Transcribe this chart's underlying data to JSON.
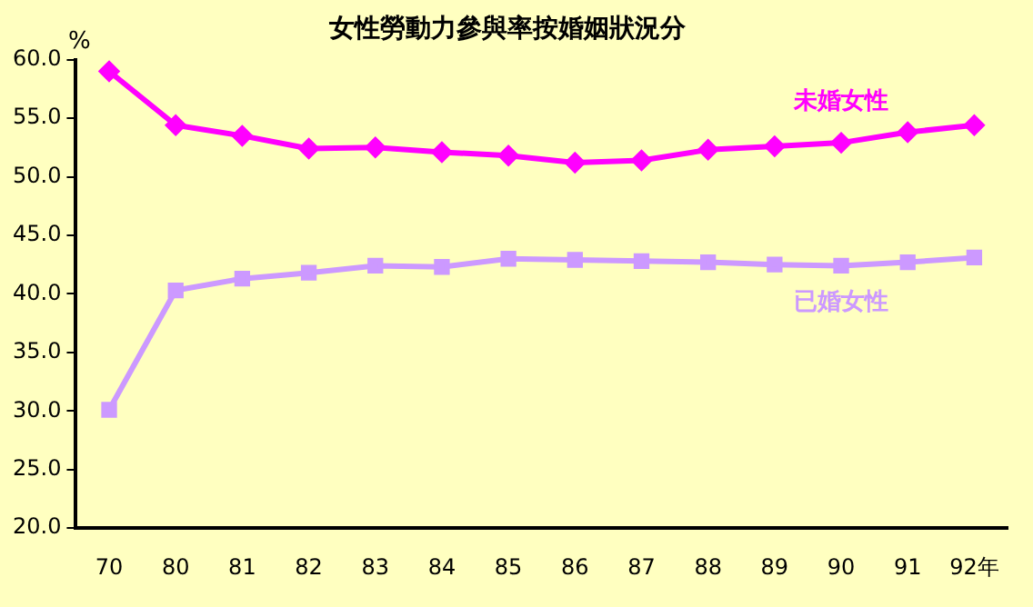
{
  "chart_data": {
    "type": "line",
    "title": "女性勞動力參與率按婚姻狀況分",
    "ylabel": "%",
    "categories": [
      "70",
      "80",
      "81",
      "82",
      "83",
      "84",
      "85",
      "86",
      "87",
      "88",
      "89",
      "90",
      "91",
      "92年"
    ],
    "series": [
      {
        "name": "未婚女性",
        "color": "#ff00ff",
        "marker": "diamond",
        "values": [
          59.0,
          54.4,
          53.5,
          52.4,
          52.5,
          52.1,
          51.8,
          51.2,
          51.4,
          52.3,
          52.6,
          52.9,
          53.8,
          54.4
        ]
      },
      {
        "name": "已婚女性",
        "color": "#cc99ff",
        "marker": "square",
        "values": [
          30.1,
          40.3,
          41.3,
          41.8,
          42.4,
          42.3,
          43.0,
          42.9,
          42.8,
          42.7,
          42.5,
          42.4,
          42.7,
          43.1
        ]
      }
    ],
    "ylim": [
      20,
      60
    ],
    "yticks": [
      {
        "value": 20,
        "label": "20.0"
      },
      {
        "value": 25,
        "label": "25.0"
      },
      {
        "value": 30,
        "label": "30.0"
      },
      {
        "value": 35,
        "label": "35.0"
      },
      {
        "value": 40,
        "label": "40.0"
      },
      {
        "value": 45,
        "label": "45.0"
      },
      {
        "value": 50,
        "label": "50.0"
      },
      {
        "value": 55,
        "label": "55.0"
      },
      {
        "value": 60,
        "label": "60.0"
      }
    ],
    "grid": false,
    "legend": false,
    "line_style": "solid"
  }
}
